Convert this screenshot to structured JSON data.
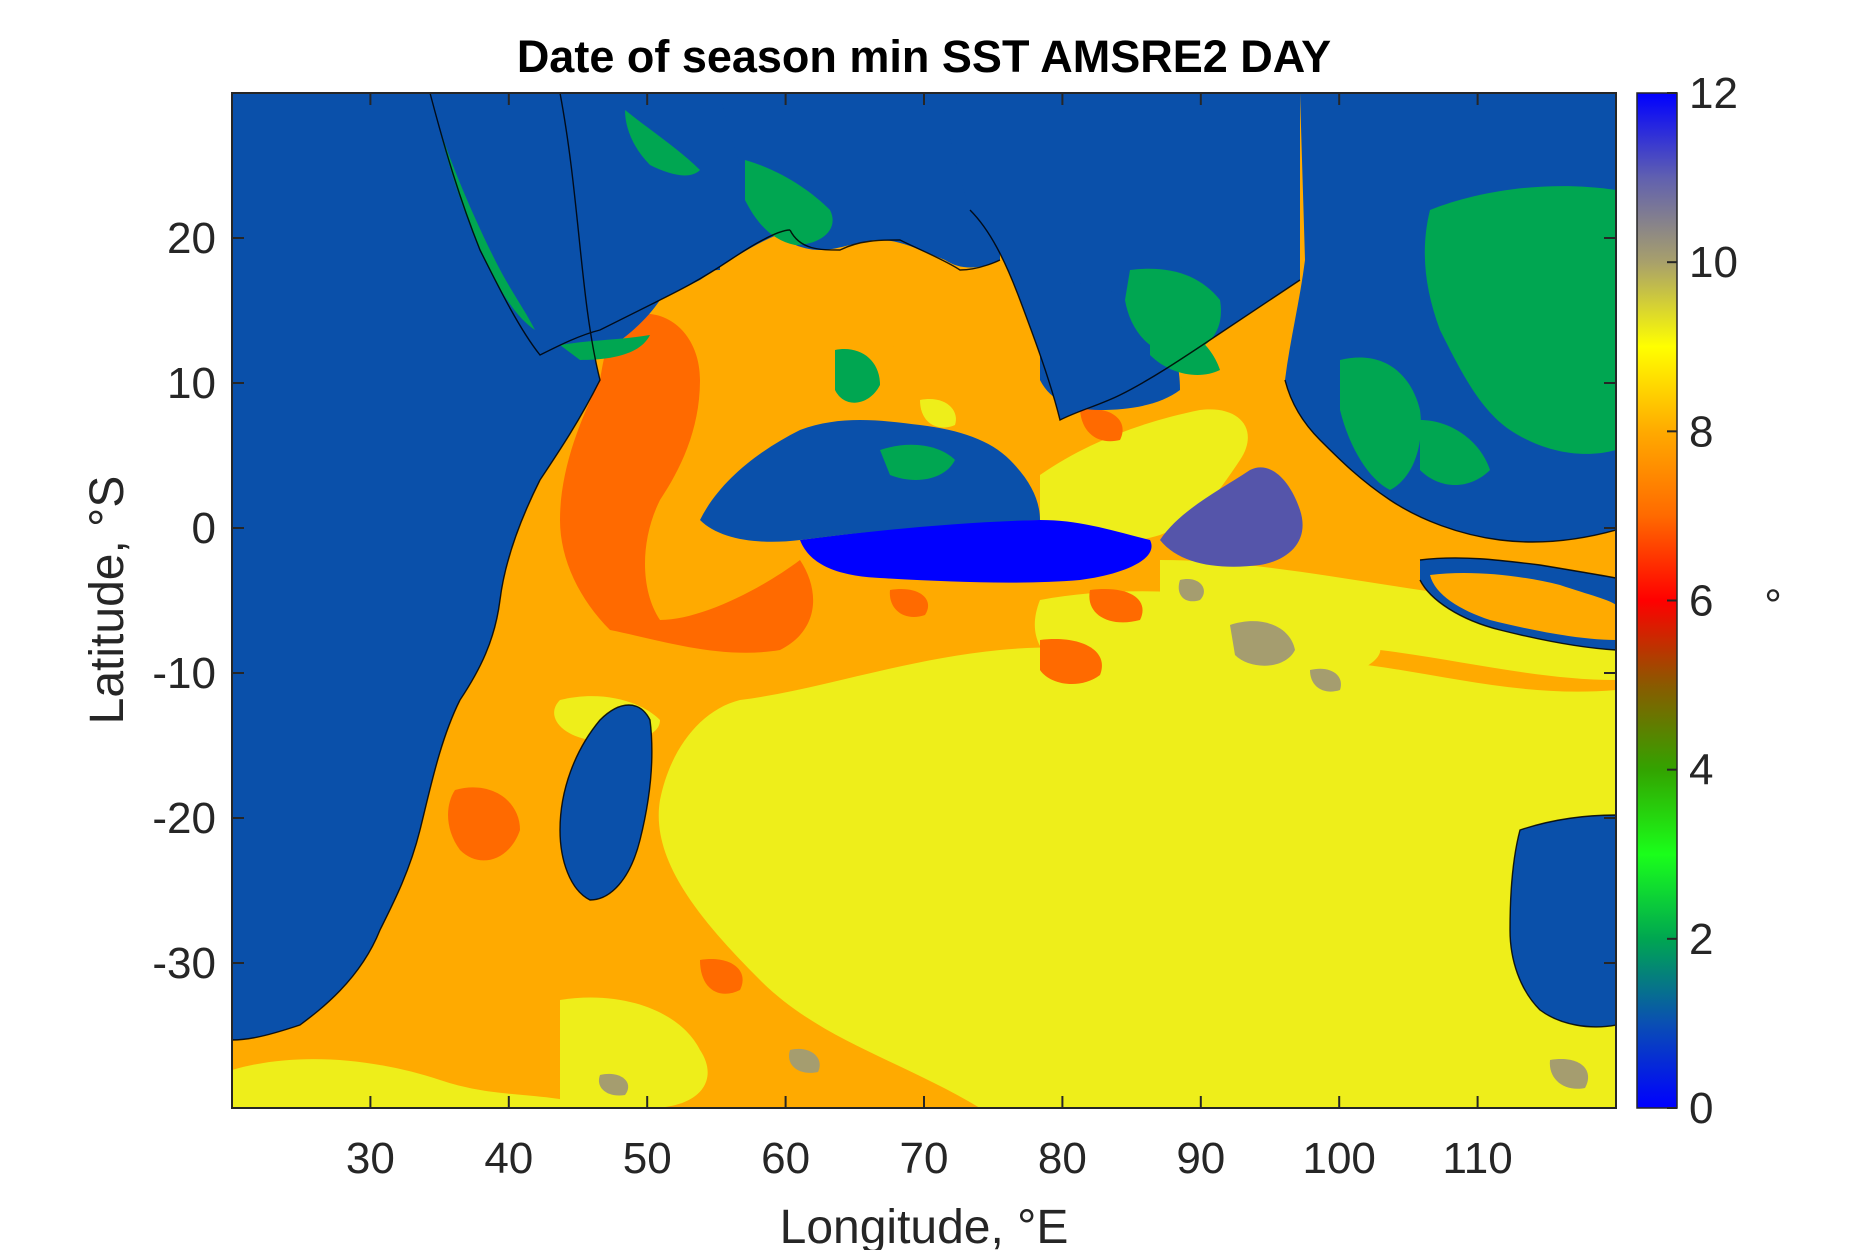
{
  "chart_data": {
    "type": "heatmap",
    "title": "Date of season min SST AMSRE2 DAY",
    "xlabel": "Longitude, °E",
    "ylabel": "Latitude, °S",
    "xlim": [
      20,
      120
    ],
    "ylim": [
      -40,
      30
    ],
    "x_ticks": [
      30,
      40,
      50,
      60,
      70,
      80,
      90,
      100,
      110
    ],
    "y_ticks": [
      20,
      10,
      0,
      -10,
      -20,
      -30
    ],
    "colorbar": {
      "range": [
        0,
        12
      ],
      "ticks": [
        0,
        2,
        4,
        6,
        8,
        10,
        12
      ],
      "label": "°",
      "stops": [
        {
          "v": 0,
          "c": "#0000ff"
        },
        {
          "v": 1,
          "c": "#0a4fb3"
        },
        {
          "v": 2,
          "c": "#00a651"
        },
        {
          "v": 3,
          "c": "#1aff1a"
        },
        {
          "v": 4,
          "c": "#33a300"
        },
        {
          "v": 5,
          "c": "#8a5a00"
        },
        {
          "v": 6,
          "c": "#ff0000"
        },
        {
          "v": 7,
          "c": "#ff6a00"
        },
        {
          "v": 8,
          "c": "#ffaa00"
        },
        {
          "v": 9,
          "c": "#ffff00"
        },
        {
          "v": 10,
          "c": "#a8a06b"
        },
        {
          "v": 11,
          "c": "#6060b0"
        },
        {
          "v": 12,
          "c": "#0000ff"
        }
      ]
    },
    "regions": [
      {
        "name": "land",
        "value": 1,
        "color": "#0a50aa"
      },
      {
        "name": "arabian-sea-west",
        "value": 7,
        "color": "#ff6a00"
      },
      {
        "name": "indian-ocean-south",
        "value": 8,
        "color": "#ffaa00"
      },
      {
        "name": "subtropical-band",
        "value": 9,
        "color": "#eeee1a"
      },
      {
        "name": "equatorial-band",
        "value": 0,
        "color": "#0000ff"
      },
      {
        "name": "andaman-region",
        "value": 11,
        "color": "#5555aa"
      },
      {
        "name": "coastal-green",
        "value": 2,
        "color": "#00a651"
      }
    ]
  }
}
